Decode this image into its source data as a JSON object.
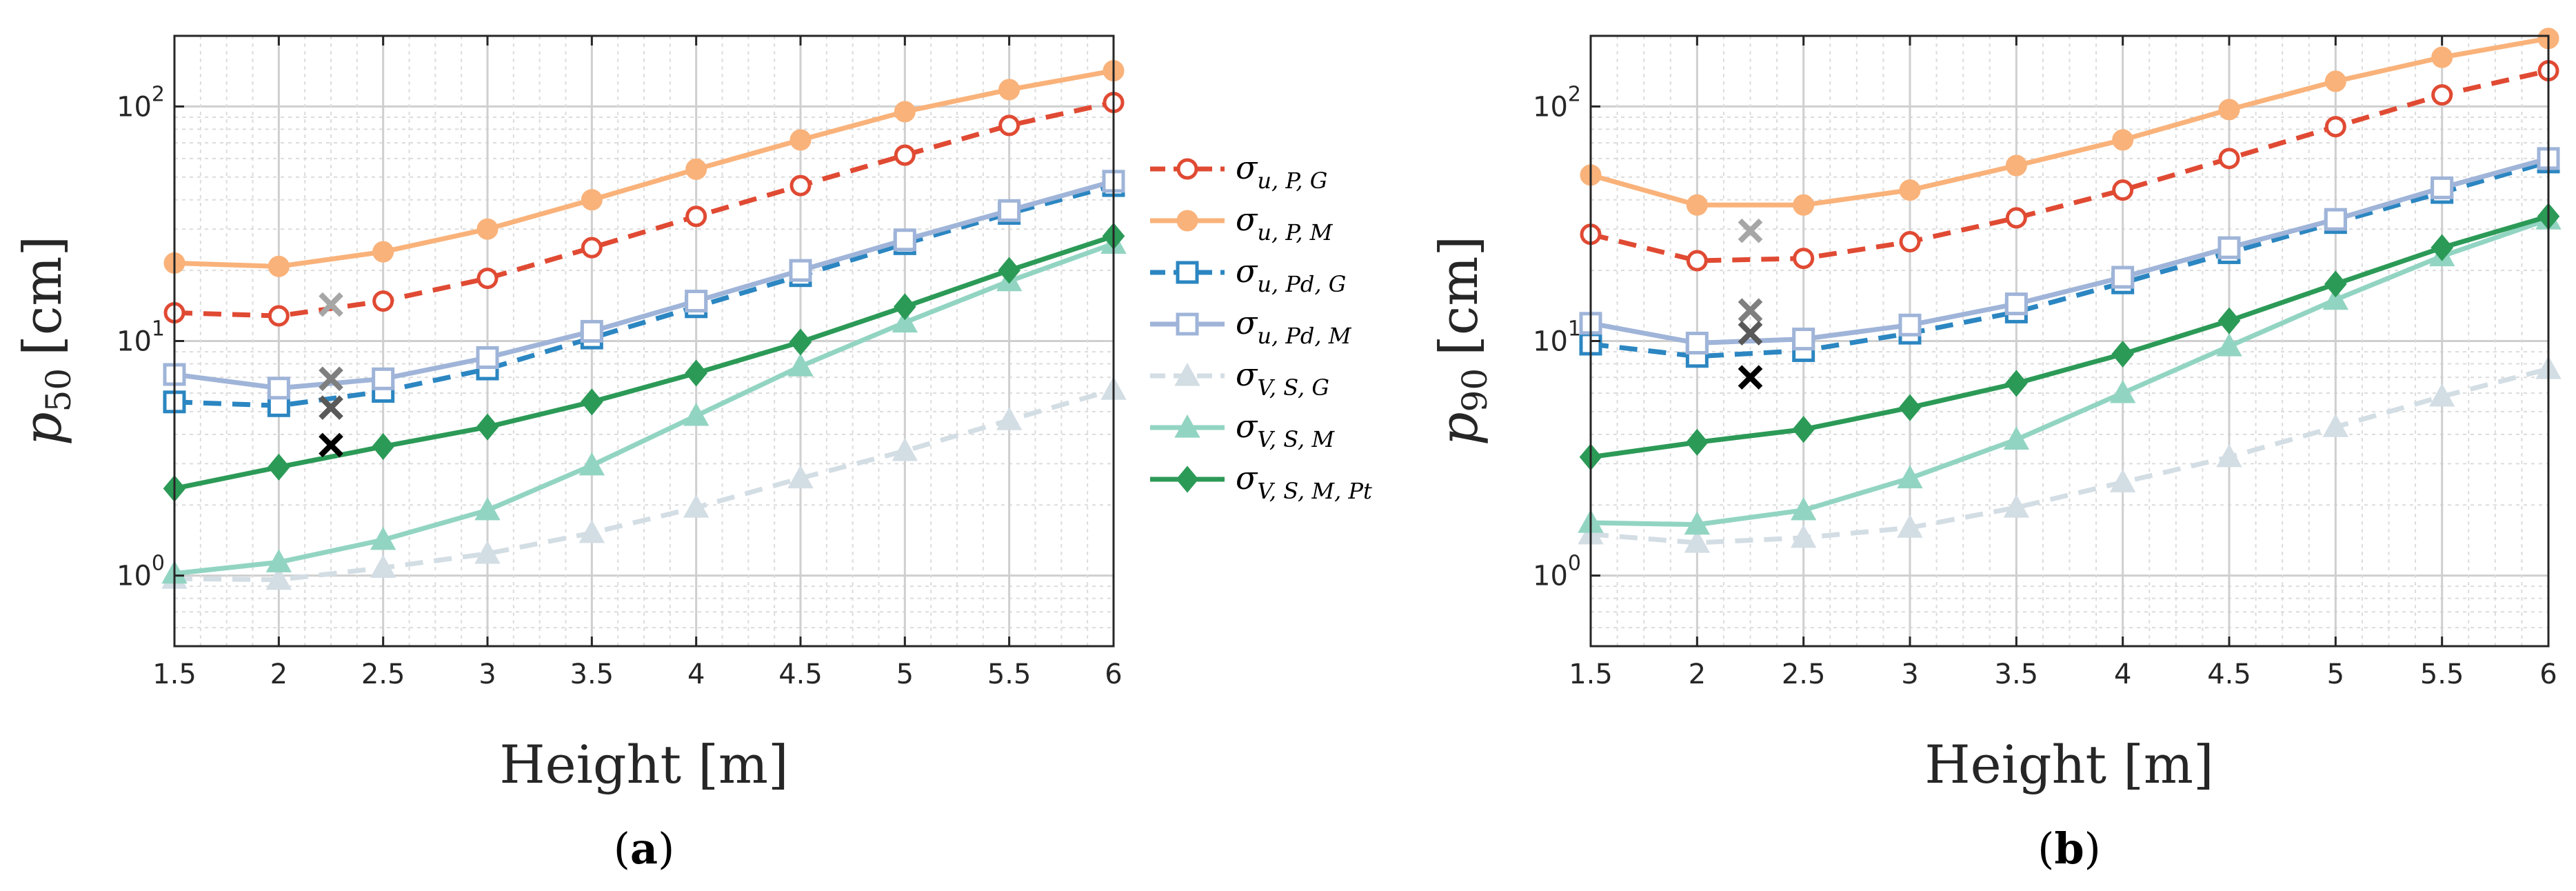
{
  "panels": [
    {
      "caption": "(a)",
      "caption_letter": "a",
      "ylabel_main": "p",
      "ylabel_sub": "50",
      "ylabel_unit": "[cm]"
    },
    {
      "caption": "(b)",
      "caption_letter": "b",
      "ylabel_main": "p",
      "ylabel_sub": "90",
      "ylabel_unit": "[cm]"
    }
  ],
  "legend": [
    {
      "base": "σ",
      "sub": "u, P, G"
    },
    {
      "base": "σ",
      "sub": "u, P, M"
    },
    {
      "base": "σ",
      "sub": "u, Pd, G"
    },
    {
      "base": "σ",
      "sub": "u, Pd, M"
    },
    {
      "base": "σ",
      "sub": "V, S, G"
    },
    {
      "base": "σ",
      "sub": "V, S, M"
    },
    {
      "base": "σ",
      "sub": "V, S, M, Pt"
    }
  ],
  "colors": {
    "uPG": "#e04a33",
    "uPM": "#f9b27a",
    "uPdG": "#2b86c1",
    "uPdM": "#9fb4d8",
    "VSG": "#d3dde4",
    "VSM": "#92d4c2",
    "VSMPt": "#2c9a57",
    "grid": "#d9d9d9",
    "axis": "#262626"
  },
  "chart_data": [
    {
      "type": "line",
      "xlabel": "Height [m]",
      "ylabel": "p50 [cm]",
      "yscale": "log",
      "xlim": [
        1.5,
        6
      ],
      "ylim": [
        0.5,
        200
      ],
      "grid": true,
      "legend_position": "right-of-panel-a",
      "xticks": [
        "1.5",
        "2",
        "2.5",
        "3",
        "3.5",
        "4",
        "4.5",
        "5",
        "5.5",
        "6"
      ],
      "yticks": [
        1,
        10,
        100
      ],
      "x": [
        1.5,
        2,
        2.5,
        3,
        3.5,
        4,
        4.5,
        5,
        5.5,
        6
      ],
      "series": [
        {
          "name": "σ_{u,P,G}",
          "style": "dashed",
          "marker": "circle",
          "color_key": "uPG",
          "values": [
            13.2,
            12.8,
            14.8,
            18.5,
            25,
            34,
            46,
            62,
            83,
            104
          ]
        },
        {
          "name": "σ_{u,P,M}",
          "style": "solid",
          "marker": "circle-filled",
          "color_key": "uPM",
          "values": [
            21.5,
            20.8,
            24,
            30,
            40,
            54,
            72,
            95,
            118,
            142
          ]
        },
        {
          "name": "σ_{u,Pd,G}",
          "style": "dashed",
          "marker": "square",
          "color_key": "uPdG",
          "values": [
            5.5,
            5.3,
            6.1,
            7.6,
            10.3,
            14,
            19,
            26,
            35,
            46
          ]
        },
        {
          "name": "σ_{u,Pd,M}",
          "style": "solid",
          "marker": "square",
          "color_key": "uPdM",
          "values": [
            7.2,
            6.3,
            6.9,
            8.5,
            11,
            14.8,
            20,
            27,
            36,
            48
          ]
        },
        {
          "name": "σ_{V,S,G}",
          "style": "dashed",
          "marker": "triangle-filled",
          "color_key": "VSG",
          "values": [
            0.97,
            0.96,
            1.08,
            1.24,
            1.52,
            1.95,
            2.6,
            3.4,
            4.6,
            6.2
          ]
        },
        {
          "name": "σ_{V,S,M}",
          "style": "solid",
          "marker": "triangle-filled",
          "color_key": "VSM",
          "values": [
            1.02,
            1.14,
            1.42,
            1.9,
            2.95,
            4.8,
            7.8,
            12,
            18,
            26
          ]
        },
        {
          "name": "σ_{V,S,M,Pt}",
          "style": "solid",
          "marker": "diamond-filled",
          "color_key": "VSMPt",
          "values": [
            2.35,
            2.9,
            3.55,
            4.3,
            5.5,
            7.3,
            9.9,
            14,
            20,
            28
          ]
        }
      ],
      "x_markers": [
        {
          "x": 2.25,
          "y": 14.3,
          "color": "#a6a6a6"
        },
        {
          "x": 2.25,
          "y": 6.9,
          "color": "#7f7f7f"
        },
        {
          "x": 2.25,
          "y": 5.2,
          "color": "#595959"
        },
        {
          "x": 2.25,
          "y": 3.6,
          "color": "#000000"
        }
      ]
    },
    {
      "type": "line",
      "xlabel": "Height [m]",
      "ylabel": "p90 [cm]",
      "yscale": "log",
      "xlim": [
        1.5,
        6
      ],
      "ylim": [
        0.5,
        200
      ],
      "grid": true,
      "xticks": [
        "1.5",
        "2",
        "2.5",
        "3",
        "3.5",
        "4",
        "4.5",
        "5",
        "5.5",
        "6"
      ],
      "yticks": [
        1,
        10,
        100
      ],
      "x": [
        1.5,
        2,
        2.5,
        3,
        3.5,
        4,
        4.5,
        5,
        5.5,
        6
      ],
      "series": [
        {
          "name": "σ_{u,P,G}",
          "style": "dashed",
          "marker": "circle",
          "color_key": "uPG",
          "values": [
            28.5,
            22,
            22.5,
            26.5,
            33.5,
            44,
            60,
            82,
            112,
            142
          ]
        },
        {
          "name": "σ_{u,P,M}",
          "style": "solid",
          "marker": "circle-filled",
          "color_key": "uPM",
          "values": [
            51,
            38,
            38,
            44,
            56,
            72,
            97,
            128,
            162,
            195
          ]
        },
        {
          "name": "σ_{u,Pd,G}",
          "style": "dashed",
          "marker": "square",
          "color_key": "uPdG",
          "values": [
            9.7,
            8.6,
            9.1,
            10.8,
            13.3,
            17.7,
            23.8,
            32,
            43,
            58
          ]
        },
        {
          "name": "σ_{u,Pd,M}",
          "style": "solid",
          "marker": "square",
          "color_key": "uPdM",
          "values": [
            11.9,
            9.8,
            10.2,
            11.7,
            14.4,
            18.7,
            25,
            33,
            45,
            60
          ]
        },
        {
          "name": "σ_{V,S,G}",
          "style": "dashed",
          "marker": "triangle-filled",
          "color_key": "VSG",
          "values": [
            1.5,
            1.38,
            1.45,
            1.6,
            1.95,
            2.5,
            3.2,
            4.3,
            5.8,
            7.6
          ]
        },
        {
          "name": "σ_{V,S,M}",
          "style": "solid",
          "marker": "triangle-filled",
          "color_key": "VSM",
          "values": [
            1.68,
            1.65,
            1.9,
            2.6,
            3.8,
            6,
            9.5,
            15,
            23,
            33
          ]
        },
        {
          "name": "σ_{V,S,M,Pt}",
          "style": "solid",
          "marker": "diamond-filled",
          "color_key": "VSMPt",
          "values": [
            3.2,
            3.7,
            4.2,
            5.2,
            6.6,
            8.8,
            12.2,
            17.5,
            25,
            34
          ]
        }
      ],
      "x_markers": [
        {
          "x": 2.25,
          "y": 29.5,
          "color": "#a6a6a6"
        },
        {
          "x": 2.25,
          "y": 13.5,
          "color": "#7f7f7f"
        },
        {
          "x": 2.25,
          "y": 10.8,
          "color": "#595959"
        },
        {
          "x": 2.25,
          "y": 7.0,
          "color": "#000000"
        }
      ]
    }
  ]
}
